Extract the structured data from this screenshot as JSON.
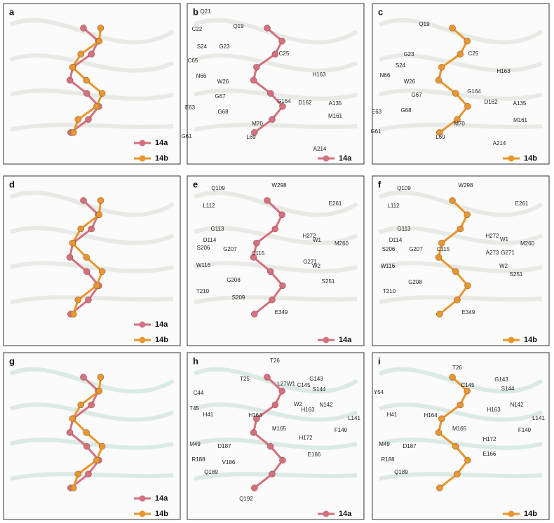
{
  "panels": [
    {
      "label": "a",
      "legend": [
        {
          "name": "14a",
          "color": "#d4707f"
        },
        {
          "name": "14b",
          "color": "#e8962e"
        }
      ]
    },
    {
      "label": "b",
      "legend": [
        {
          "name": "14a",
          "color": "#d4707f"
        }
      ],
      "residues": [
        "Q21",
        "C22",
        "Q19",
        "S24",
        "G23",
        "C25",
        "C65",
        "N66",
        "W26",
        "H163",
        "G67",
        "G164",
        "D162",
        "A135",
        "E63",
        "G68",
        "M70",
        "M161",
        "G61",
        "L69",
        "A214"
      ]
    },
    {
      "label": "c",
      "legend": [
        {
          "name": "14b",
          "color": "#e8962e"
        }
      ],
      "residues": [
        "Q19",
        "G23",
        "C25",
        "S24",
        "N66",
        "H163",
        "W26",
        "G67",
        "G164",
        "D162",
        "A135",
        "E63",
        "G68",
        "M70",
        "M161",
        "G61",
        "L69",
        "A214"
      ]
    },
    {
      "label": "d",
      "legend": [
        {
          "name": "14a",
          "color": "#d4707f"
        },
        {
          "name": "14b",
          "color": "#e8962e"
        }
      ]
    },
    {
      "label": "e",
      "legend": [
        {
          "name": "14a",
          "color": "#d4707f"
        }
      ],
      "residues": [
        "Q109",
        "W298",
        "L112",
        "E261",
        "G113",
        "H272",
        "M260",
        "D114",
        "W1",
        "C115",
        "G271",
        "S206",
        "G207",
        "W2",
        "W116",
        "G208",
        "S251",
        "T210",
        "S209",
        "E349"
      ]
    },
    {
      "label": "f",
      "legend": [
        {
          "name": "14b",
          "color": "#e8962e"
        }
      ],
      "residues": [
        "Q109",
        "W298",
        "L112",
        "E261",
        "G113",
        "H272",
        "M260",
        "D114",
        "C115",
        "W1",
        "S206",
        "G207",
        "G271",
        "A273",
        "W2",
        "W116",
        "G208",
        "S251",
        "T210",
        "E349"
      ]
    },
    {
      "label": "g",
      "legend": [
        {
          "name": "14a",
          "color": "#d4707f"
        },
        {
          "name": "14b",
          "color": "#e8962e"
        }
      ]
    },
    {
      "label": "h",
      "legend": [
        {
          "name": "14a",
          "color": "#d4707f"
        }
      ],
      "residues": [
        "T26",
        "T25",
        "L27",
        "C44",
        "G143",
        "T45",
        "W1",
        "C145",
        "H41",
        "S144",
        "W2",
        "H163",
        "N142",
        "H164",
        "L141",
        "M165",
        "M49",
        "D187",
        "F140",
        "H172",
        "R188",
        "V186",
        "E166",
        "Q189",
        "Q192"
      ]
    },
    {
      "label": "i",
      "legend": [
        {
          "name": "14b",
          "color": "#e8962e"
        }
      ],
      "residues": [
        "T26",
        "C145",
        "G143",
        "S144",
        "Y54",
        "H41",
        "H163",
        "N142",
        "H164",
        "L141",
        "M165",
        "M49",
        "D187",
        "F140",
        "H172",
        "R188",
        "E166",
        "Q189"
      ]
    }
  ]
}
